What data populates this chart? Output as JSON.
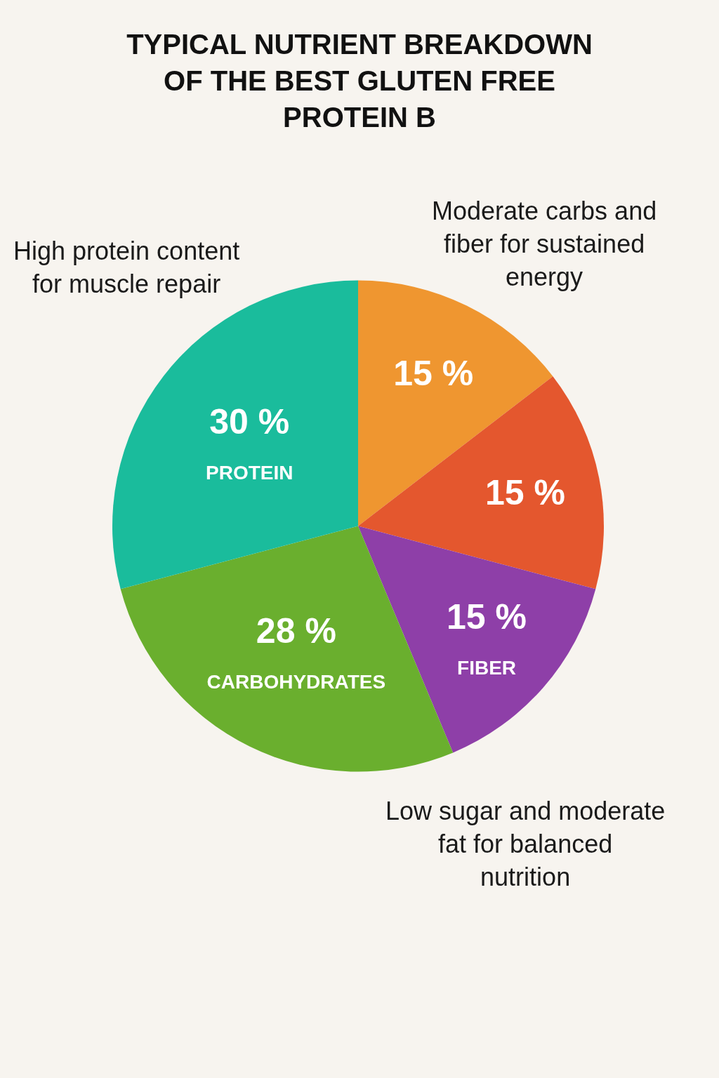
{
  "chart_data": {
    "type": "pie",
    "title": "TYPICAL NUTRIENT BREAKDOWN OF THE BEST GLUTEN FREE PROTEIN B",
    "categories": [
      null,
      null,
      "FIBER",
      "CARBOHYDRATES",
      "PROTEIN"
    ],
    "values": [
      15,
      15,
      15,
      28,
      30
    ],
    "value_labels": [
      "15 %",
      "15 %",
      "15 %",
      "28 %",
      "30 %"
    ],
    "colors": [
      "#ef9630",
      "#e4572e",
      "#8e3fa8",
      "#6aaf2e",
      "#1abc9c"
    ],
    "annotations": [
      "High protein content for muscle repair",
      "Moderate carbs and fiber for sustained energy",
      "Low sugar and moderate fat for balanced nutrition"
    ]
  }
}
